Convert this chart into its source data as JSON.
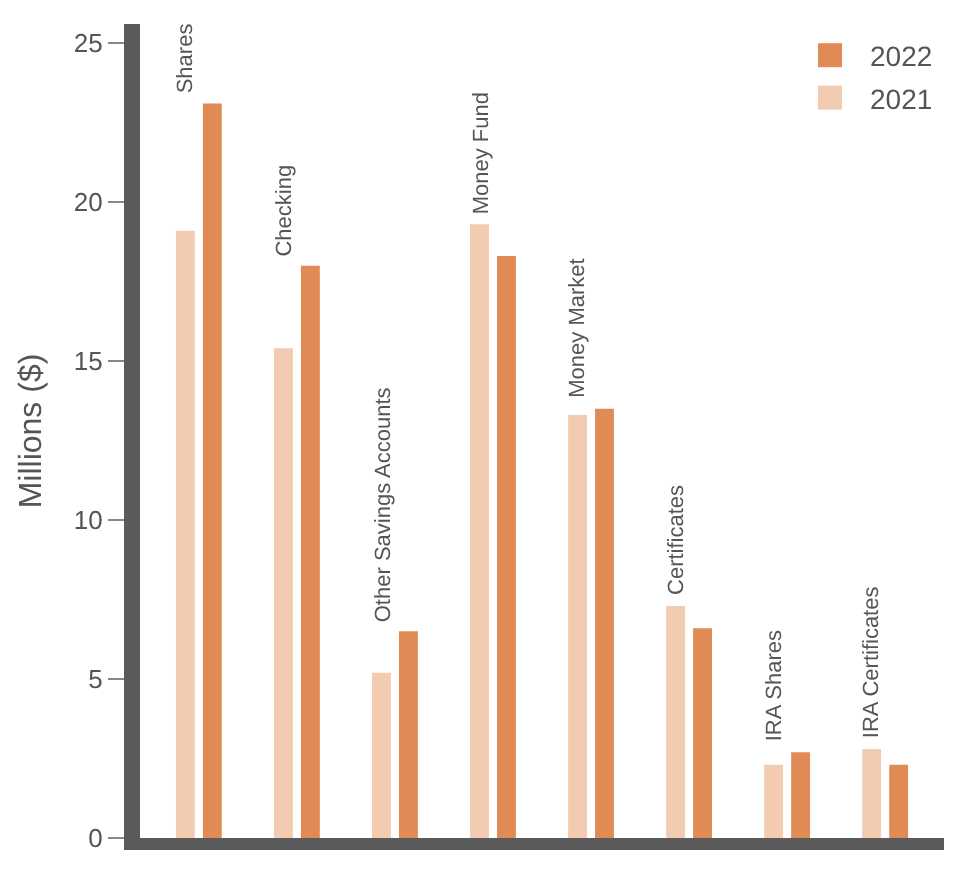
{
  "chart_data": {
    "type": "bar",
    "ylabel": "Millions ($)",
    "categories": [
      "Shares",
      "Checking",
      "Other Savings Accounts",
      "Money Fund",
      "Money Market",
      "Certificates",
      "IRA Shares",
      "IRA Certificates"
    ],
    "series": [
      {
        "name": "2021",
        "color": "#f2cbb0",
        "values": [
          19.1,
          15.4,
          5.2,
          19.3,
          13.3,
          7.3,
          2.3,
          2.8
        ]
      },
      {
        "name": "2022",
        "color": "#e08a56",
        "values": [
          23.1,
          18.0,
          6.5,
          18.3,
          13.5,
          6.6,
          2.7,
          2.3
        ]
      }
    ],
    "ylim": [
      0,
      25.6
    ],
    "yticks": [
      0,
      5,
      10,
      15,
      20,
      25
    ],
    "legend": "top right",
    "tick_labels": "y"
  }
}
